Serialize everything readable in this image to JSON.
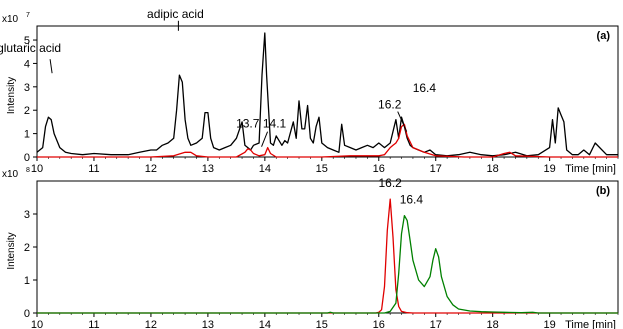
{
  "chart_data": [
    {
      "type": "line",
      "panel_label": "(a)",
      "xlabel": "Time [min]",
      "ylabel": "Intensity",
      "y_scale_label": "x10",
      "y_scale_exponent": "7",
      "xlim": [
        10,
        20.2
      ],
      "ylim": [
        0,
        5.6
      ],
      "xticks": [
        10,
        11,
        12,
        13,
        14,
        15,
        16,
        17,
        18,
        19
      ],
      "yticks": [
        0,
        1,
        2,
        3,
        4,
        5
      ],
      "grid": false,
      "series": [
        {
          "color": "#000000",
          "x": [
            10.0,
            10.1,
            10.15,
            10.2,
            10.25,
            10.3,
            10.4,
            10.5,
            10.6,
            10.8,
            11.0,
            11.3,
            11.6,
            11.8,
            12.0,
            12.1,
            12.2,
            12.3,
            12.4,
            12.45,
            12.5,
            12.55,
            12.6,
            12.65,
            12.7,
            12.8,
            12.9,
            12.95,
            13.0,
            13.05,
            13.1,
            13.2,
            13.3,
            13.4,
            13.5,
            13.6,
            13.65,
            13.7,
            13.75,
            13.8,
            13.9,
            13.95,
            14.0,
            14.03,
            14.1,
            14.15,
            14.2,
            14.3,
            14.35,
            14.4,
            14.5,
            14.55,
            14.6,
            14.65,
            14.7,
            14.75,
            14.8,
            14.85,
            14.9,
            14.95,
            15.0,
            15.1,
            15.2,
            15.3,
            15.35,
            15.4,
            15.5,
            15.6,
            15.7,
            15.8,
            15.9,
            16.0,
            16.1,
            16.2,
            16.3,
            16.35,
            16.4,
            16.45,
            16.5,
            16.55,
            16.6,
            16.7,
            16.8,
            16.9,
            17.0,
            17.2,
            17.4,
            17.6,
            17.8,
            18.0,
            18.2,
            18.4,
            18.6,
            18.8,
            19.0,
            19.05,
            19.1,
            19.15,
            19.2,
            19.25,
            19.3,
            19.4,
            19.5,
            19.6,
            19.7,
            19.8,
            20.0,
            20.2
          ],
          "y": [
            0.2,
            0.4,
            1.3,
            1.7,
            1.6,
            1.0,
            0.4,
            0.2,
            0.15,
            0.1,
            0.15,
            0.1,
            0.1,
            0.2,
            0.3,
            0.3,
            0.5,
            0.6,
            0.8,
            2.0,
            3.5,
            3.2,
            1.6,
            0.8,
            0.5,
            0.6,
            0.8,
            1.9,
            1.9,
            0.8,
            0.4,
            0.3,
            0.4,
            0.5,
            0.8,
            1.5,
            0.5,
            0.4,
            0.3,
            0.5,
            0.6,
            3.5,
            5.3,
            3.5,
            0.6,
            0.5,
            0.9,
            0.5,
            0.7,
            0.6,
            1.5,
            0.8,
            2.4,
            1.2,
            1.2,
            2.2,
            0.8,
            0.6,
            1.3,
            1.7,
            0.6,
            0.4,
            0.3,
            0.2,
            1.4,
            0.5,
            0.4,
            0.3,
            0.4,
            0.5,
            0.4,
            0.6,
            0.4,
            0.6,
            1.6,
            0.8,
            1.7,
            1.3,
            0.8,
            0.5,
            0.4,
            0.3,
            0.2,
            0.3,
            0.1,
            0.05,
            0.1,
            0.2,
            0.1,
            0.05,
            0.1,
            0.2,
            0.05,
            0.1,
            0.4,
            1.6,
            0.6,
            2.1,
            1.8,
            1.5,
            0.3,
            0.1,
            0.1,
            0.3,
            0.1,
            0.6,
            0.1,
            0.1
          ]
        },
        {
          "color": "#e00000",
          "x": [
            10.0,
            12.0,
            12.4,
            12.6,
            12.7,
            12.8,
            13.0,
            13.5,
            13.65,
            13.7,
            13.75,
            13.8,
            13.9,
            14.0,
            14.05,
            14.1,
            14.2,
            15.0,
            15.5,
            16.0,
            16.1,
            16.2,
            16.25,
            16.3,
            16.35,
            16.4,
            16.45,
            16.5,
            16.6,
            16.8,
            17.0,
            17.5,
            18.0,
            18.2,
            18.3,
            18.4,
            19.0,
            20.2
          ],
          "y": [
            0.0,
            0.0,
            0.05,
            0.2,
            0.2,
            0.05,
            0.0,
            0.0,
            0.2,
            0.35,
            0.3,
            0.15,
            0.05,
            0.1,
            0.4,
            0.15,
            0.0,
            0.0,
            0.05,
            0.05,
            0.1,
            0.4,
            0.5,
            0.6,
            0.8,
            1.3,
            1.4,
            0.9,
            0.4,
            0.2,
            0.05,
            0.0,
            0.0,
            0.15,
            0.2,
            0.05,
            0.0,
            0.0
          ]
        }
      ],
      "annotations": [
        {
          "text": "glutaric acid",
          "x": 10.3,
          "y": 1.7
        },
        {
          "text": "adipic acid",
          "x": 12.5,
          "y": 3.6
        },
        {
          "text": "13.7",
          "x": 13.7,
          "y": 0.4
        },
        {
          "text": "14.1",
          "x": 14.1,
          "y": 0.4
        },
        {
          "text": "16.2",
          "x": 16.35,
          "y": 1.0
        },
        {
          "text": "16.4",
          "x": 16.45,
          "y": 1.5
        }
      ]
    },
    {
      "type": "line",
      "panel_label": "(b)",
      "xlabel": "Time [min]",
      "ylabel": "Intensity",
      "y_scale_label": "x10",
      "y_scale_exponent": "8",
      "xlim": [
        10,
        20.2
      ],
      "ylim": [
        0,
        4.0
      ],
      "xticks": [
        10,
        11,
        12,
        13,
        14,
        15,
        16,
        17,
        18,
        19
      ],
      "yticks": [
        0,
        1,
        2,
        3
      ],
      "grid": false,
      "series": [
        {
          "color": "#e00000",
          "x": [
            10.0,
            15.95,
            16.0,
            16.05,
            16.1,
            16.15,
            16.2,
            16.25,
            16.3,
            16.35,
            16.4,
            16.5,
            16.6,
            20.2
          ],
          "y": [
            0.0,
            0.0,
            0.02,
            0.1,
            0.8,
            2.5,
            3.45,
            2.3,
            0.7,
            0.2,
            0.05,
            0.01,
            0.0,
            0.0
          ]
        },
        {
          "color": "#008000",
          "x": [
            10.0,
            15.1,
            15.15,
            15.2,
            16.1,
            16.2,
            16.3,
            16.35,
            16.4,
            16.45,
            16.5,
            16.55,
            16.6,
            16.7,
            16.8,
            16.9,
            16.95,
            17.0,
            17.05,
            17.1,
            17.2,
            17.3,
            17.4,
            17.6,
            17.8,
            18.0,
            18.2,
            18.5,
            18.7,
            18.8,
            18.9,
            20.2
          ],
          "y": [
            0.0,
            0.0,
            0.02,
            0.0,
            0.0,
            0.05,
            0.3,
            1.2,
            2.4,
            2.95,
            2.8,
            2.2,
            1.6,
            1.0,
            0.8,
            1.1,
            1.6,
            1.95,
            1.7,
            1.1,
            0.5,
            0.25,
            0.12,
            0.06,
            0.04,
            0.03,
            0.02,
            0.01,
            0.02,
            0.0,
            0.0,
            0.0
          ]
        }
      ],
      "annotations": [
        {
          "text": "16.2",
          "x": 16.2,
          "y": 3.45
        },
        {
          "text": "16.4",
          "x": 16.45,
          "y": 2.95
        }
      ]
    }
  ]
}
